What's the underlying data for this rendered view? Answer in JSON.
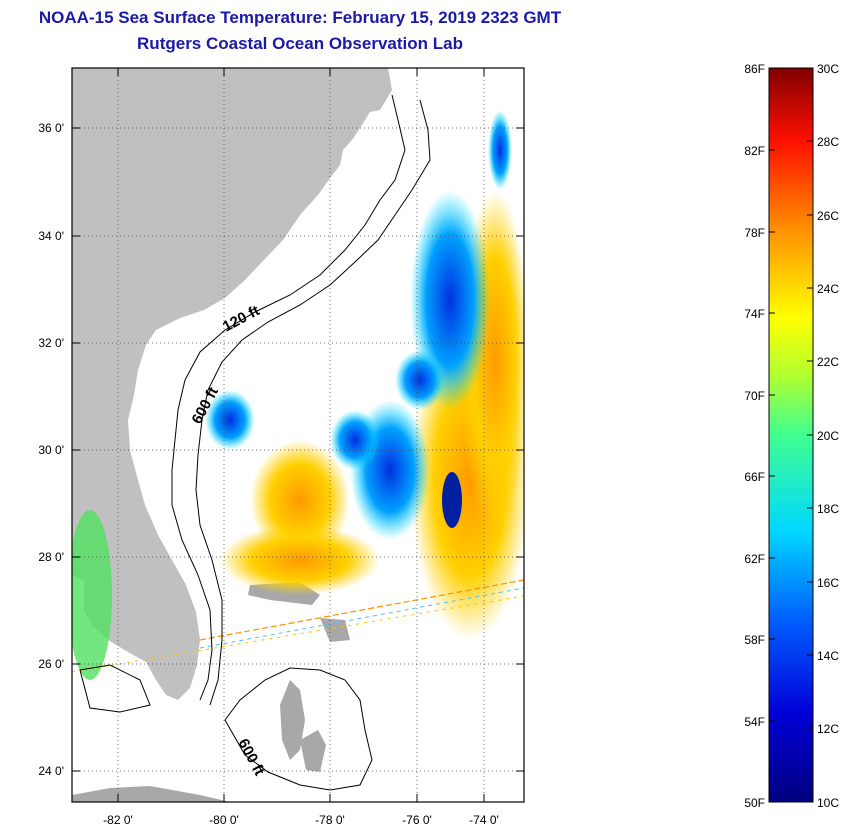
{
  "title": {
    "line1": "NOAA-15 Sea Surface Temperature:  February 15, 2019 2323 GMT",
    "line2": "Rutgers Coastal Ocean Observation Lab"
  },
  "map": {
    "lat_labels": [
      "36 0'",
      "34 0'",
      "32 0'",
      "30 0'",
      "28 0'",
      "26 0'",
      "24 0'"
    ],
    "lon_labels": [
      "-82 0'",
      "-80 0'",
      "-78 0'",
      "-76 0'",
      "-74 0'"
    ],
    "isobaths": [
      "120 ft",
      "600 ft",
      "600 ft"
    ],
    "land_color": "#c0c0c0"
  },
  "colorbar": {
    "f_labels": [
      "86F",
      "82F",
      "78F",
      "74F",
      "70F",
      "66F",
      "62F",
      "58F",
      "54F",
      "50F"
    ],
    "c_labels": [
      "30C",
      "28C",
      "26C",
      "24C",
      "22C",
      "20C",
      "18C",
      "16C",
      "14C",
      "12C",
      "10C"
    ],
    "range_c": [
      10,
      30
    ]
  }
}
